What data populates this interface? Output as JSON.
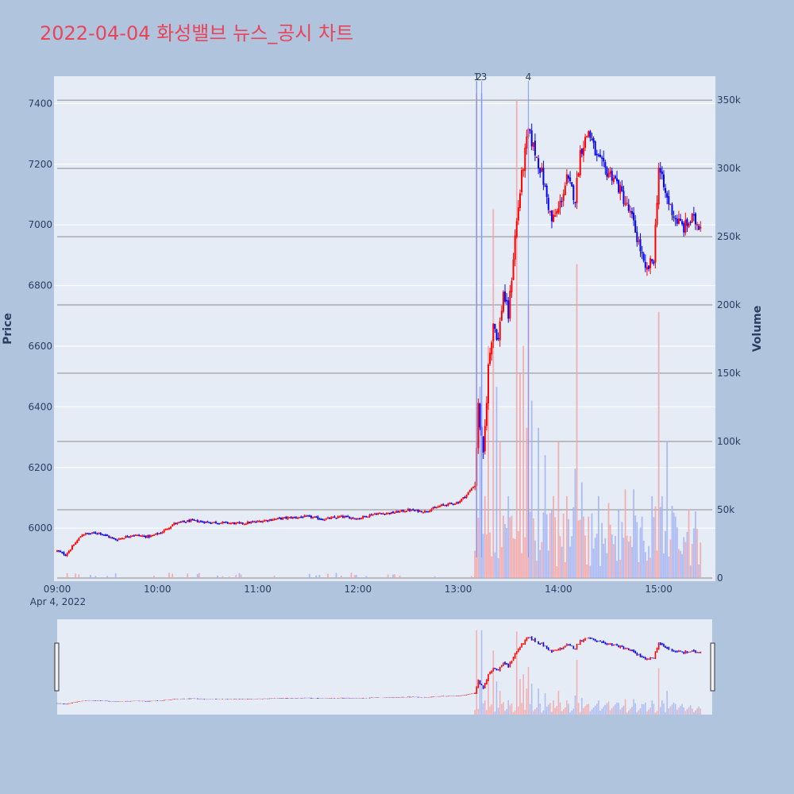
{
  "title": "2022-04-04 화성밸브 뉴스_공시 차트",
  "colors": {
    "page_bg": "#b0c4de",
    "plot_bg": "#e5ecf6",
    "up": "#ff0000",
    "down": "#0000ff",
    "title": "#e8445a",
    "volume_up": "#f4a3a3",
    "volume_down": "#a3b3f4"
  },
  "chart_data": {
    "type": "candlestick",
    "ylabel_left": "Price",
    "ylabel_right": "Volume",
    "date_label": "Apr 4, 2022",
    "price_range": [
      5825,
      7490
    ],
    "price_ticks": [
      "6000",
      "6200",
      "6400",
      "6600",
      "6800",
      "7000",
      "7200",
      "7400"
    ],
    "volume_range": [
      0,
      350000
    ],
    "volume_ticks": [
      "0",
      "50k",
      "100k",
      "150k",
      "200k",
      "250k",
      "300k",
      "350k"
    ],
    "time_ticks": [
      "09:00",
      "10:00",
      "11:00",
      "12:00",
      "13:00",
      "14:00",
      "15:00"
    ],
    "time_range_minutes": [
      0,
      392
    ],
    "news_markers": [
      {
        "label": "1",
        "minute": 251
      },
      {
        "label": "2",
        "minute": 251
      },
      {
        "label": "3",
        "minute": 254
      },
      {
        "label": "4",
        "minute": 282
      }
    ],
    "price_keypoints": [
      [
        0,
        5925
      ],
      [
        5,
        5912
      ],
      [
        10,
        5945
      ],
      [
        15,
        5980
      ],
      [
        25,
        5985
      ],
      [
        35,
        5962
      ],
      [
        45,
        5978
      ],
      [
        55,
        5972
      ],
      [
        62,
        5985
      ],
      [
        70,
        6015
      ],
      [
        80,
        6025
      ],
      [
        90,
        6020
      ],
      [
        100,
        6018
      ],
      [
        110,
        6015
      ],
      [
        120,
        6022
      ],
      [
        130,
        6030
      ],
      [
        140,
        6035
      ],
      [
        150,
        6038
      ],
      [
        160,
        6030
      ],
      [
        170,
        6038
      ],
      [
        180,
        6032
      ],
      [
        190,
        6048
      ],
      [
        200,
        6050
      ],
      [
        210,
        6060
      ],
      [
        220,
        6055
      ],
      [
        230,
        6075
      ],
      [
        240,
        6085
      ],
      [
        245,
        6110
      ],
      [
        250,
        6145
      ],
      [
        252,
        6400
      ],
      [
        255,
        6230
      ],
      [
        258,
        6530
      ],
      [
        261,
        6680
      ],
      [
        264,
        6620
      ],
      [
        267,
        6780
      ],
      [
        270,
        6700
      ],
      [
        274,
        6960
      ],
      [
        278,
        7160
      ],
      [
        282,
        7310
      ],
      [
        286,
        7240
      ],
      [
        290,
        7170
      ],
      [
        296,
        7010
      ],
      [
        300,
        7050
      ],
      [
        305,
        7150
      ],
      [
        310,
        7090
      ],
      [
        313,
        7240
      ],
      [
        318,
        7310
      ],
      [
        323,
        7220
      ],
      [
        328,
        7180
      ],
      [
        333,
        7160
      ],
      [
        338,
        7100
      ],
      [
        344,
        7020
      ],
      [
        349,
        6920
      ],
      [
        352,
        6840
      ],
      [
        357,
        6890
      ],
      [
        360,
        7190
      ],
      [
        364,
        7100
      ],
      [
        370,
        7020
      ],
      [
        375,
        6990
      ],
      [
        380,
        7020
      ],
      [
        384,
        7000
      ],
      [
        385,
        7010
      ]
    ],
    "volume_spikes": [
      [
        250,
        20000
      ],
      [
        251,
        355000
      ],
      [
        253,
        140000
      ],
      [
        254,
        355000
      ],
      [
        256,
        60000
      ],
      [
        258,
        170000
      ],
      [
        261,
        270000
      ],
      [
        263,
        140000
      ],
      [
        265,
        100000
      ],
      [
        270,
        60000
      ],
      [
        275,
        350000
      ],
      [
        277,
        150000
      ],
      [
        279,
        170000
      ],
      [
        281,
        110000
      ],
      [
        282,
        200000
      ],
      [
        284,
        130000
      ],
      [
        288,
        110000
      ],
      [
        292,
        90000
      ],
      [
        297,
        60000
      ],
      [
        300,
        100000
      ],
      [
        305,
        60000
      ],
      [
        310,
        80000
      ],
      [
        311,
        230000
      ],
      [
        314,
        70000
      ],
      [
        318,
        45000
      ],
      [
        324,
        60000
      ],
      [
        330,
        55000
      ],
      [
        336,
        50000
      ],
      [
        340,
        65000
      ],
      [
        345,
        65000
      ],
      [
        350,
        45000
      ],
      [
        356,
        60000
      ],
      [
        360,
        195000
      ],
      [
        362,
        60000
      ],
      [
        365,
        100000
      ],
      [
        370,
        45000
      ],
      [
        375,
        30000
      ],
      [
        380,
        25000
      ],
      [
        385,
        26000
      ]
    ]
  }
}
